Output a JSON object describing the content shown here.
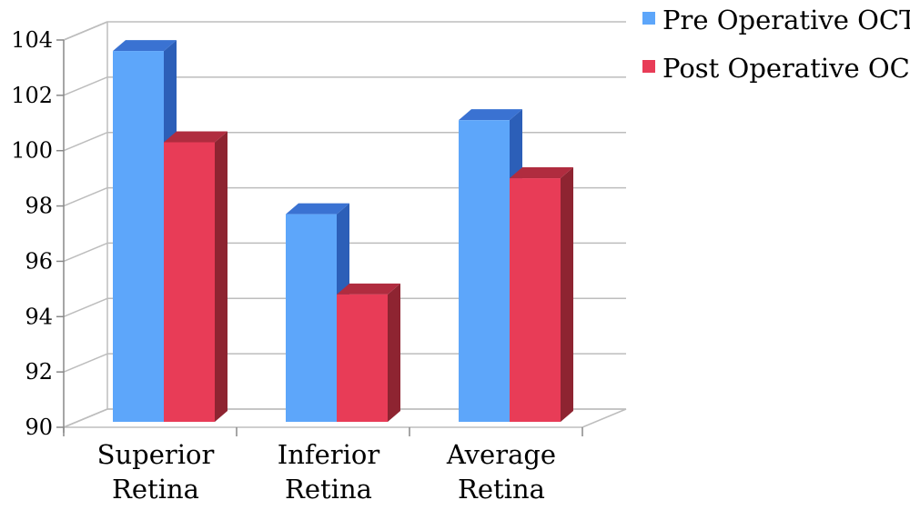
{
  "chart_data": {
    "type": "bar",
    "categories": [
      [
        "Superior",
        "Retina"
      ],
      [
        "Inferior",
        "Retina"
      ],
      [
        "Average",
        "Retina"
      ]
    ],
    "series": [
      {
        "name": "Pre Operative OCT",
        "values": [
          103.8,
          97.9,
          101.3
        ],
        "color": "#5DA6FA",
        "side_color": "#2C5FB8",
        "top_color": "#3A72D2"
      },
      {
        "name": "Post Operative OCT",
        "values": [
          100.5,
          95.0,
          99.2
        ],
        "color": "#E83C57",
        "side_color": "#8E2431",
        "top_color": "#B02C3F"
      }
    ],
    "yticks": [
      "90",
      "92",
      "94",
      "96",
      "98",
      "100",
      "102",
      "104"
    ],
    "ylim": [
      90,
      104
    ],
    "grid": true,
    "legend_position": "top-right",
    "title": "",
    "xlabel": "",
    "ylabel": ""
  }
}
